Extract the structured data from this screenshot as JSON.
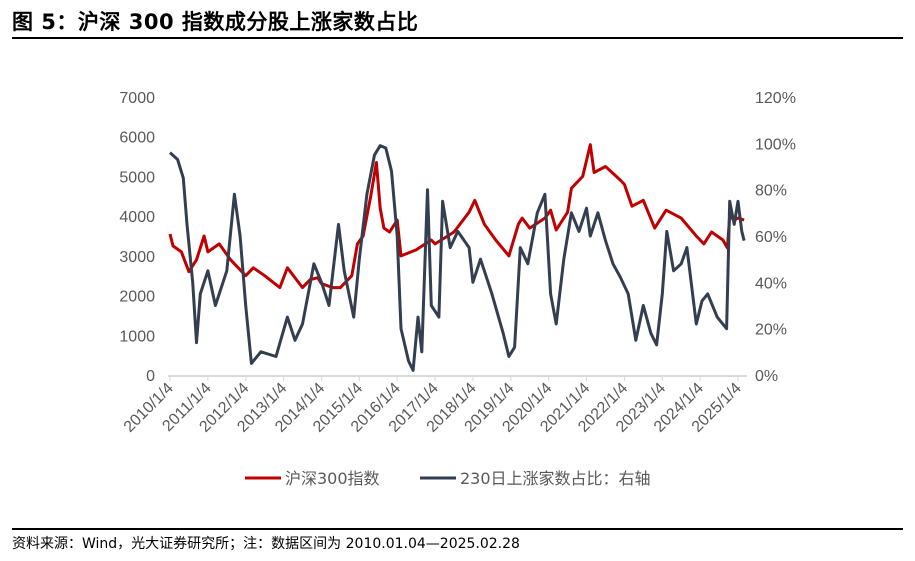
{
  "title": "图 5：沪深 300 指数成分股上涨家数占比",
  "footer": "资料来源：Wind，光大证券研究所；注：数据区间为 2010.01.04—2025.02.28",
  "chart_data": {
    "type": "line",
    "title": "图 5：沪深 300 指数成分股上涨家数占比",
    "x_tick_labels": [
      "2010/1/4",
      "2011/1/4",
      "2012/1/4",
      "2013/1/4",
      "2014/1/4",
      "2015/1/4",
      "2016/1/4",
      "2017/1/4",
      "2018/1/4",
      "2019/1/4",
      "2020/1/4",
      "2021/1/4",
      "2022/1/4",
      "2023/1/4",
      "2024/1/4",
      "2025/1/4"
    ],
    "y_left": {
      "range": [
        0,
        7000
      ],
      "ticks": [
        "0",
        "1000",
        "2000",
        "3000",
        "4000",
        "5000",
        "6000",
        "7000"
      ]
    },
    "y_right": {
      "range": [
        0,
        120
      ],
      "ticks": [
        "0%",
        "20%",
        "40%",
        "60%",
        "80%",
        "100%",
        "120%"
      ]
    },
    "grid": false,
    "legend_position": "bottom",
    "series": [
      {
        "name": "沪深300指数",
        "axis": "left",
        "color": "#C00000",
        "points": [
          [
            2010.0,
            3550
          ],
          [
            2010.08,
            3250
          ],
          [
            2010.3,
            3100
          ],
          [
            2010.5,
            2600
          ],
          [
            2010.7,
            2900
          ],
          [
            2010.9,
            3500
          ],
          [
            2011.0,
            3100
          ],
          [
            2011.3,
            3300
          ],
          [
            2011.6,
            2900
          ],
          [
            2011.9,
            2600
          ],
          [
            2012.0,
            2500
          ],
          [
            2012.2,
            2700
          ],
          [
            2012.5,
            2500
          ],
          [
            2012.9,
            2200
          ],
          [
            2013.1,
            2700
          ],
          [
            2013.5,
            2200
          ],
          [
            2013.7,
            2400
          ],
          [
            2013.9,
            2450
          ],
          [
            2014.0,
            2300
          ],
          [
            2014.3,
            2200
          ],
          [
            2014.5,
            2200
          ],
          [
            2014.8,
            2500
          ],
          [
            2014.95,
            3300
          ],
          [
            2015.1,
            3500
          ],
          [
            2015.3,
            4500
          ],
          [
            2015.45,
            5350
          ],
          [
            2015.55,
            4200
          ],
          [
            2015.65,
            3700
          ],
          [
            2015.8,
            3600
          ],
          [
            2016.0,
            3900
          ],
          [
            2016.1,
            3000
          ],
          [
            2016.5,
            3150
          ],
          [
            2016.9,
            3400
          ],
          [
            2017.0,
            3300
          ],
          [
            2017.5,
            3600
          ],
          [
            2017.9,
            4100
          ],
          [
            2018.05,
            4400
          ],
          [
            2018.3,
            3800
          ],
          [
            2018.6,
            3400
          ],
          [
            2018.95,
            3000
          ],
          [
            2019.2,
            3800
          ],
          [
            2019.3,
            3950
          ],
          [
            2019.5,
            3700
          ],
          [
            2019.9,
            3950
          ],
          [
            2020.05,
            4150
          ],
          [
            2020.2,
            3650
          ],
          [
            2020.5,
            4100
          ],
          [
            2020.6,
            4700
          ],
          [
            2020.9,
            5000
          ],
          [
            2021.1,
            5800
          ],
          [
            2021.2,
            5100
          ],
          [
            2021.5,
            5250
          ],
          [
            2021.9,
            4900
          ],
          [
            2022.0,
            4800
          ],
          [
            2022.2,
            4250
          ],
          [
            2022.5,
            4400
          ],
          [
            2022.8,
            3700
          ],
          [
            2023.1,
            4150
          ],
          [
            2023.5,
            3950
          ],
          [
            2023.9,
            3500
          ],
          [
            2024.1,
            3300
          ],
          [
            2024.3,
            3600
          ],
          [
            2024.6,
            3400
          ],
          [
            2024.72,
            3200
          ],
          [
            2024.78,
            4000
          ],
          [
            2024.9,
            3900
          ],
          [
            2025.0,
            3950
          ],
          [
            2025.16,
            3900
          ]
        ]
      },
      {
        "name": "230日上涨家数占比：右轴",
        "axis": "right",
        "color": "#333F50",
        "points": [
          [
            2010.0,
            96
          ],
          [
            2010.2,
            93
          ],
          [
            2010.35,
            85
          ],
          [
            2010.45,
            65
          ],
          [
            2010.6,
            40
          ],
          [
            2010.7,
            14
          ],
          [
            2010.8,
            35
          ],
          [
            2011.0,
            45
          ],
          [
            2011.2,
            30
          ],
          [
            2011.5,
            45
          ],
          [
            2011.7,
            78
          ],
          [
            2011.85,
            60
          ],
          [
            2012.0,
            30
          ],
          [
            2012.15,
            5
          ],
          [
            2012.4,
            10
          ],
          [
            2012.8,
            8
          ],
          [
            2013.1,
            25
          ],
          [
            2013.3,
            15
          ],
          [
            2013.5,
            22
          ],
          [
            2013.8,
            48
          ],
          [
            2014.0,
            40
          ],
          [
            2014.2,
            30
          ],
          [
            2014.45,
            65
          ],
          [
            2014.6,
            45
          ],
          [
            2014.85,
            25
          ],
          [
            2015.0,
            50
          ],
          [
            2015.2,
            78
          ],
          [
            2015.4,
            95
          ],
          [
            2015.55,
            99
          ],
          [
            2015.7,
            98
          ],
          [
            2015.85,
            88
          ],
          [
            2016.0,
            60
          ],
          [
            2016.1,
            20
          ],
          [
            2016.3,
            6
          ],
          [
            2016.42,
            2
          ],
          [
            2016.55,
            25
          ],
          [
            2016.65,
            10
          ],
          [
            2016.8,
            80
          ],
          [
            2016.9,
            30
          ],
          [
            2017.1,
            25
          ],
          [
            2017.2,
            75
          ],
          [
            2017.4,
            55
          ],
          [
            2017.6,
            62
          ],
          [
            2017.9,
            55
          ],
          [
            2018.0,
            40
          ],
          [
            2018.2,
            50
          ],
          [
            2018.5,
            35
          ],
          [
            2018.8,
            18
          ],
          [
            2018.95,
            8
          ],
          [
            2019.1,
            12
          ],
          [
            2019.25,
            55
          ],
          [
            2019.45,
            48
          ],
          [
            2019.7,
            70
          ],
          [
            2019.9,
            78
          ],
          [
            2020.05,
            35
          ],
          [
            2020.2,
            22
          ],
          [
            2020.4,
            50
          ],
          [
            2020.6,
            70
          ],
          [
            2020.8,
            62
          ],
          [
            2021.0,
            72
          ],
          [
            2021.1,
            60
          ],
          [
            2021.3,
            70
          ],
          [
            2021.5,
            58
          ],
          [
            2021.7,
            48
          ],
          [
            2021.9,
            42
          ],
          [
            2022.1,
            35
          ],
          [
            2022.3,
            15
          ],
          [
            2022.5,
            30
          ],
          [
            2022.7,
            18
          ],
          [
            2022.85,
            13
          ],
          [
            2023.0,
            35
          ],
          [
            2023.12,
            62
          ],
          [
            2023.3,
            45
          ],
          [
            2023.5,
            48
          ],
          [
            2023.65,
            55
          ],
          [
            2023.9,
            22
          ],
          [
            2024.05,
            32
          ],
          [
            2024.2,
            35
          ],
          [
            2024.45,
            25
          ],
          [
            2024.7,
            20
          ],
          [
            2024.78,
            75
          ],
          [
            2024.9,
            65
          ],
          [
            2025.0,
            75
          ],
          [
            2025.1,
            62
          ],
          [
            2025.16,
            58
          ]
        ]
      }
    ]
  }
}
